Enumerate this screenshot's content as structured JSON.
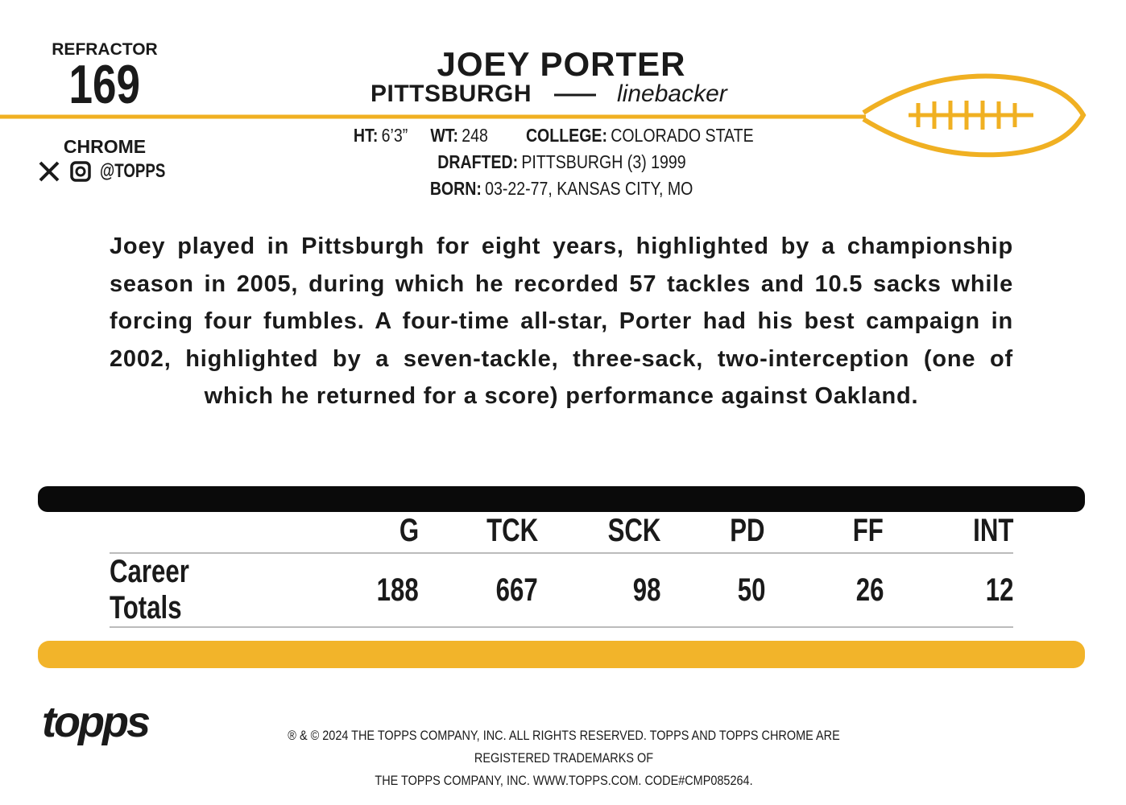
{
  "header": {
    "variant": "REFRACTOR",
    "card_number": "169",
    "brand": "CHROME",
    "social": "@TOPPS",
    "player_name": "JOEY PORTER",
    "team": "PITTSBURGH",
    "position": "linebacker"
  },
  "bio_info": [
    [
      {
        "label": "HT:",
        "value": "6’3”"
      },
      {
        "label": "WT:",
        "value": "248"
      },
      {
        "label": "COLLEGE:",
        "value": "COLORADO STATE"
      }
    ],
    [
      {
        "label": "DRAFTED:",
        "value": "PITTSBURGH (3) 1999"
      }
    ],
    [
      {
        "label": "BORN:",
        "value": "03-22-77, KANSAS CITY, MO"
      }
    ]
  ],
  "biography": "Joey played in Pittsburgh for eight years, highlighted by a championship season in 2005, during which he recorded 57 tackles and 10.5 sacks while forcing four fumbles. A four-time all-star, Porter had his best campaign in 2002, highlighted by a seven-tackle, three-sack, two-interception (one of which he returned for a score) performance against Oakland.",
  "stats": {
    "columns": [
      "G",
      "TCK",
      "SCK",
      "PD",
      "FF",
      "INT"
    ],
    "rows": [
      {
        "label": "Career Totals",
        "values": [
          188,
          667,
          98,
          50,
          26,
          12
        ]
      }
    ]
  },
  "footer": {
    "logo": "topps",
    "legal": [
      "® & © 2024 THE TOPPS COMPANY, INC. ALL RIGHTS RESERVED. TOPPS AND TOPPS CHROME ARE REGISTERED TRADEMARKS OF",
      "THE TOPPS COMPANY, INC. WWW.TOPPS.COM. CODE#CMP085264."
    ]
  }
}
